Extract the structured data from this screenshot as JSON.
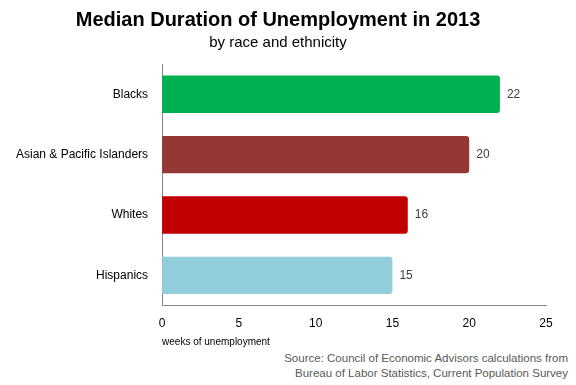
{
  "chart_data": {
    "type": "bar",
    "title": "Median Duration of Unemployment in 2013",
    "subtitle": "by race and ethnicity",
    "categories": [
      "Blacks",
      "Asian & Pacific Islanders",
      "Whites",
      "Hispanics"
    ],
    "values": [
      22,
      20,
      16,
      15
    ],
    "colors": [
      "#00b050",
      "#953735",
      "#c00000",
      "#92cddc"
    ],
    "orientation": "horizontal",
    "x_label": "weeks of unemployment",
    "xlim": [
      0,
      25
    ],
    "xticks": [
      0,
      5,
      10,
      15,
      20,
      25
    ],
    "grid": false,
    "data_labels": true,
    "source": "Source: Council of Economic Advisors calculations from Bureau of Labor Statistics, Current Population Survey"
  }
}
